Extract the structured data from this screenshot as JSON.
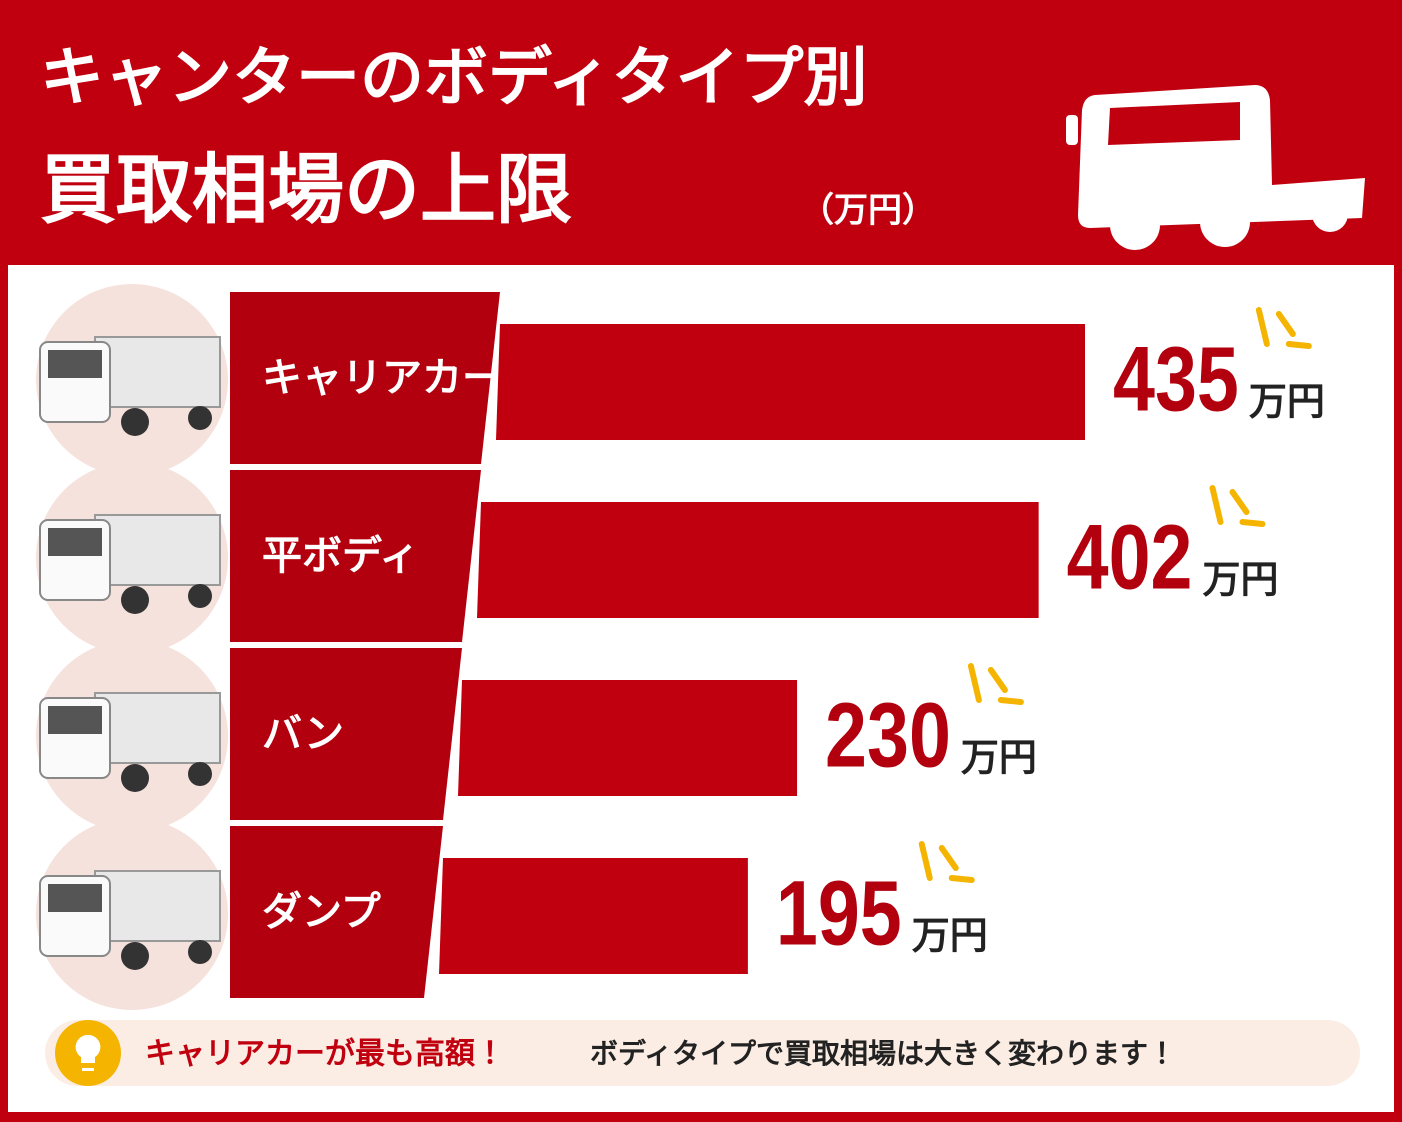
{
  "chart_data": {
    "type": "bar",
    "title": "キャンターのボディタイプ別",
    "subtitle": "買取相場の上限",
    "unit_note": "（万円）",
    "categories": [
      "キャリアカー",
      "平ボディ",
      "バン",
      "ダンプ"
    ],
    "values": [
      435,
      402,
      230,
      195
    ],
    "unit": "万円",
    "color": "#c1000f",
    "annotations": [
      "キャリアカーが最も高額！",
      "ボディタイプで買取相場は大きく変わります！"
    ]
  }
}
